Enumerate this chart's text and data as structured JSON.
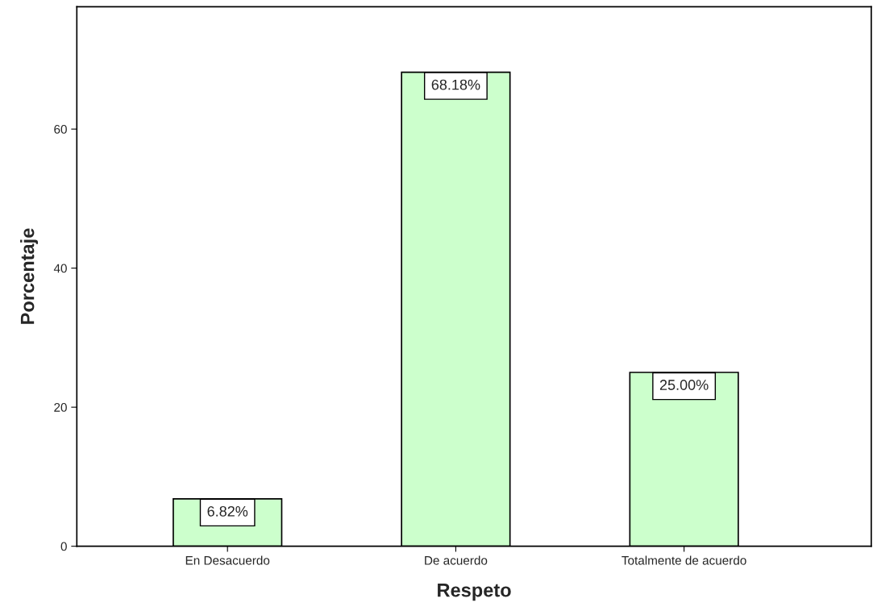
{
  "chart_data": {
    "type": "bar",
    "xlabel": "Respeto",
    "ylabel": "Porcentaje",
    "categories": [
      "En Desacuerdo",
      "De acuerdo",
      "Totalmente de acuerdo"
    ],
    "values": [
      6.82,
      68.18,
      25.0
    ],
    "value_labels": [
      "6.82%",
      "68.18%",
      "25.00%"
    ],
    "color": "#ccffcc",
    "ylim": [
      0,
      77.6
    ],
    "yticks": [
      0,
      20,
      40,
      60
    ],
    "grid": false,
    "legend": false
  }
}
